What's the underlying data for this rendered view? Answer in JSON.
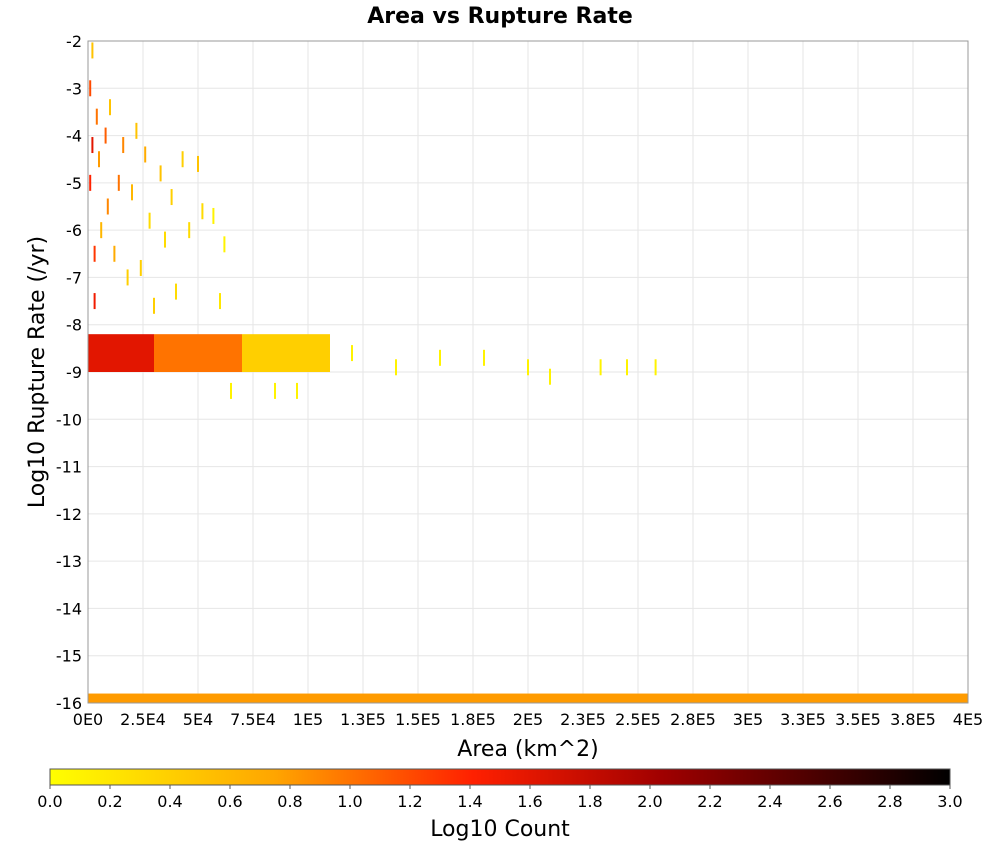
{
  "chart_data": {
    "type": "heatmap",
    "title": "Area vs Rupture Rate",
    "xlabel": "Area (km^2)",
    "ylabel": "Log10 Rupture Rate (/yr)",
    "xlim": [
      0,
      400000
    ],
    "ylim": [
      -16,
      -2
    ],
    "x_ticks": [
      "0E0",
      "2.5E4",
      "5E4",
      "7.5E4",
      "1E5",
      "1.3E5",
      "1.5E5",
      "1.8E5",
      "2E5",
      "2.3E5",
      "2.5E5",
      "2.8E5",
      "3E5",
      "3.3E5",
      "3.5E5",
      "3.8E5",
      "4E5"
    ],
    "y_ticks": [
      "-2",
      "-3",
      "-4",
      "-5",
      "-6",
      "-7",
      "-8",
      "-9",
      "-10",
      "-11",
      "-12",
      "-13",
      "-14",
      "-15",
      "-16"
    ],
    "grid": true,
    "colorbar": {
      "label": "Log10 Count",
      "range": [
        0,
        3
      ],
      "ticks": [
        "0.0",
        "0.2",
        "0.4",
        "0.6",
        "0.8",
        "1.0",
        "1.2",
        "1.4",
        "1.6",
        "1.8",
        "2.0",
        "2.2",
        "2.4",
        "2.6",
        "2.8",
        "3.0"
      ],
      "colors": [
        "#ffff00",
        "#ffa500",
        "#ff2000",
        "#a00000",
        "#000000"
      ]
    },
    "bands": [
      {
        "x_start": 0,
        "x_end": 30000,
        "y_low": -9.0,
        "y_high": -8.2,
        "log_count": 1.6
      },
      {
        "x_start": 30000,
        "x_end": 70000,
        "y_low": -9.0,
        "y_high": -8.2,
        "log_count": 1.0
      },
      {
        "x_start": 70000,
        "x_end": 110000,
        "y_low": -9.0,
        "y_high": -8.2,
        "log_count": 0.4
      },
      {
        "x_start": 0,
        "x_end": 400000,
        "y_low": -16.0,
        "y_high": -15.8,
        "log_count": 0.8
      }
    ],
    "points": [
      {
        "x": 1000,
        "y": -3.0,
        "log_count": 1.2
      },
      {
        "x": 1000,
        "y": -5.0,
        "log_count": 1.4
      },
      {
        "x": 2000,
        "y": -2.2,
        "log_count": 0.5
      },
      {
        "x": 2000,
        "y": -4.2,
        "log_count": 1.6
      },
      {
        "x": 3000,
        "y": -6.5,
        "log_count": 1.3
      },
      {
        "x": 3000,
        "y": -7.5,
        "log_count": 1.5
      },
      {
        "x": 4000,
        "y": -3.6,
        "log_count": 1.0
      },
      {
        "x": 5000,
        "y": -4.5,
        "log_count": 0.8
      },
      {
        "x": 6000,
        "y": -6.0,
        "log_count": 0.6
      },
      {
        "x": 8000,
        "y": -4.0,
        "log_count": 1.1
      },
      {
        "x": 9000,
        "y": -5.5,
        "log_count": 0.9
      },
      {
        "x": 10000,
        "y": -3.4,
        "log_count": 0.5
      },
      {
        "x": 12000,
        "y": -6.5,
        "log_count": 0.7
      },
      {
        "x": 14000,
        "y": -5.0,
        "log_count": 1.0
      },
      {
        "x": 16000,
        "y": -4.2,
        "log_count": 0.9
      },
      {
        "x": 18000,
        "y": -7.0,
        "log_count": 0.4
      },
      {
        "x": 20000,
        "y": -5.2,
        "log_count": 0.6
      },
      {
        "x": 22000,
        "y": -3.9,
        "log_count": 0.5
      },
      {
        "x": 24000,
        "y": -6.8,
        "log_count": 0.4
      },
      {
        "x": 26000,
        "y": -4.4,
        "log_count": 0.7
      },
      {
        "x": 28000,
        "y": -5.8,
        "log_count": 0.3
      },
      {
        "x": 30000,
        "y": -7.6,
        "log_count": 0.4
      },
      {
        "x": 33000,
        "y": -4.8,
        "log_count": 0.5
      },
      {
        "x": 35000,
        "y": -6.2,
        "log_count": 0.3
      },
      {
        "x": 38000,
        "y": -5.3,
        "log_count": 0.4
      },
      {
        "x": 40000,
        "y": -7.3,
        "log_count": 0.3
      },
      {
        "x": 43000,
        "y": -4.5,
        "log_count": 0.4
      },
      {
        "x": 46000,
        "y": -6.0,
        "log_count": 0.3
      },
      {
        "x": 50000,
        "y": -4.6,
        "log_count": 0.5
      },
      {
        "x": 52000,
        "y": -5.6,
        "log_count": 0.3
      },
      {
        "x": 57000,
        "y": -5.7,
        "log_count": 0.1
      },
      {
        "x": 62000,
        "y": -6.3,
        "log_count": 0.1
      },
      {
        "x": 60000,
        "y": -7.5,
        "log_count": 0.2
      },
      {
        "x": 65000,
        "y": -9.4,
        "log_count": 0.1
      },
      {
        "x": 85000,
        "y": -9.4,
        "log_count": 0.1
      },
      {
        "x": 95000,
        "y": -9.4,
        "log_count": 0.1
      },
      {
        "x": 120000,
        "y": -8.6,
        "log_count": 0.1
      },
      {
        "x": 140000,
        "y": -8.9,
        "log_count": 0.1
      },
      {
        "x": 160000,
        "y": -8.7,
        "log_count": 0.1
      },
      {
        "x": 180000,
        "y": -8.7,
        "log_count": 0.1
      },
      {
        "x": 200000,
        "y": -8.9,
        "log_count": 0.1
      },
      {
        "x": 210000,
        "y": -9.1,
        "log_count": 0.1
      },
      {
        "x": 233000,
        "y": -8.9,
        "log_count": 0.1
      },
      {
        "x": 245000,
        "y": -8.9,
        "log_count": 0.1
      },
      {
        "x": 258000,
        "y": -8.9,
        "log_count": 0.1
      }
    ]
  }
}
